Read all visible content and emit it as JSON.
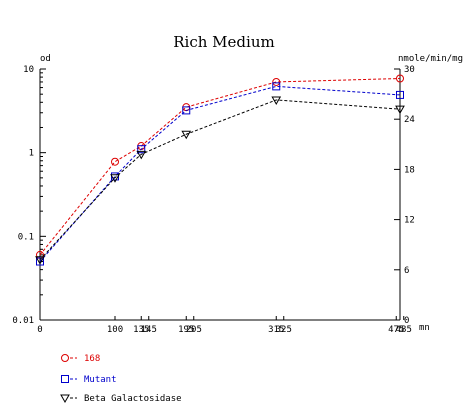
{
  "chart_data": {
    "type": "line",
    "title": "Rich Medium",
    "y_left_label": "od",
    "y_right_label": "nmole/min/mg",
    "x_unit_label": "mn",
    "y_left_scale": "log",
    "y_left_range": [
      0.01,
      10
    ],
    "y_left_ticks": [
      "0.01",
      "0.1",
      "1",
      "10"
    ],
    "y_right_range": [
      0,
      30
    ],
    "y_right_ticks": [
      "0",
      "6",
      "12",
      "18",
      "24",
      "30"
    ],
    "x_range": [
      0,
      480
    ],
    "x_tick_labels": [
      {
        "x": 0,
        "label": "0"
      },
      {
        "x": 100,
        "label": "100"
      },
      {
        "x": 135,
        "label": "135"
      },
      {
        "x": 145,
        "label": "145"
      },
      {
        "x": 195,
        "label": "195"
      },
      {
        "x": 205,
        "label": "205"
      },
      {
        "x": 315,
        "label": "315"
      },
      {
        "x": 325,
        "label": "325"
      },
      {
        "x": 475,
        "label": "475"
      },
      {
        "x": 485,
        "label": "485"
      }
    ],
    "grid": false,
    "legend_position": "bottom-left",
    "series": [
      {
        "name": "168",
        "axis": "left",
        "marker": "circle",
        "color": "#dd0000",
        "x": [
          0,
          100,
          135,
          195,
          315,
          480
        ],
        "y": [
          0.06,
          0.78,
          1.2,
          3.5,
          7.0,
          7.7
        ]
      },
      {
        "name": "Mutant",
        "axis": "left",
        "marker": "square",
        "color": "#0000cc",
        "x": [
          0,
          100,
          135,
          195,
          315,
          480
        ],
        "y": [
          0.05,
          0.52,
          1.1,
          3.2,
          6.2,
          4.9
        ]
      },
      {
        "name": "Beta Galactosidase",
        "axis": "right",
        "marker": "triangle-down",
        "color": "#000000",
        "x": [
          0,
          100,
          135,
          195,
          315,
          480
        ],
        "y": [
          7.2,
          17.0,
          19.8,
          22.2,
          26.3,
          25.2
        ]
      }
    ]
  }
}
